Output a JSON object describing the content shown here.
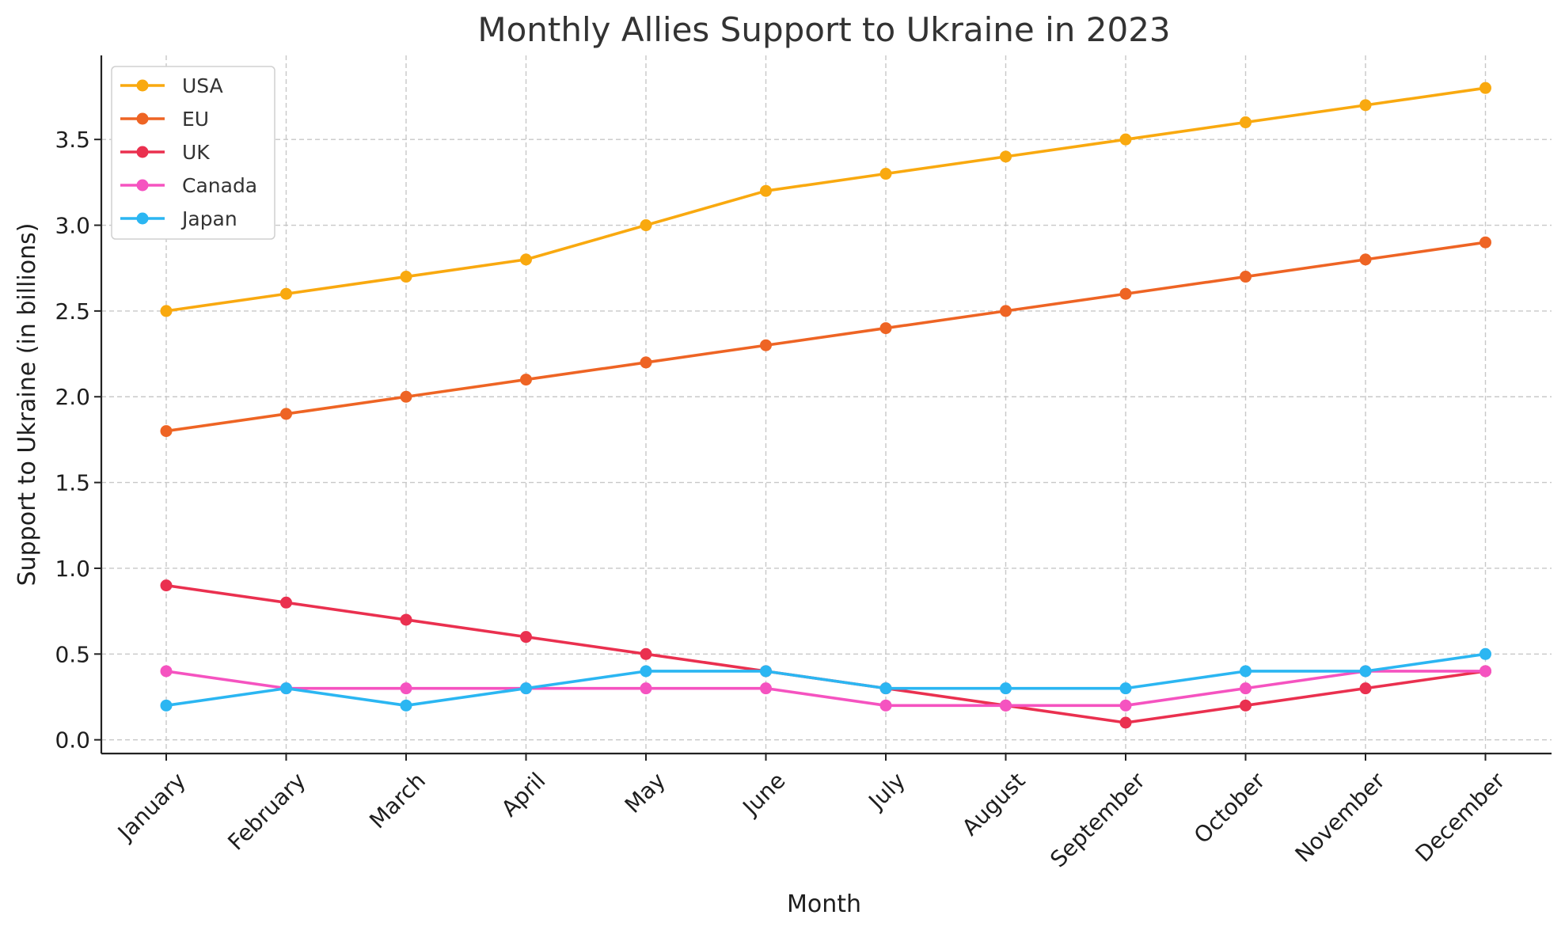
{
  "chart_data": {
    "type": "line",
    "title": "Monthly Allies Support to Ukraine in 2023",
    "xlabel": "Month",
    "ylabel": "Support to Ukraine (in billions)",
    "categories": [
      "January",
      "February",
      "March",
      "April",
      "May",
      "June",
      "July",
      "August",
      "September",
      "October",
      "November",
      "December"
    ],
    "ylim": [
      -0.08,
      3.99
    ],
    "yticks": [
      0.0,
      0.5,
      1.0,
      1.5,
      2.0,
      2.5,
      3.0,
      3.5
    ],
    "ytick_labels": [
      "0.0",
      "0.5",
      "1.0",
      "1.5",
      "2.0",
      "2.5",
      "3.0",
      "3.5"
    ],
    "grid": true,
    "legend_position": "top-left",
    "series": [
      {
        "name": "USA",
        "color": "#f9a90f",
        "values": [
          2.5,
          2.6,
          2.7,
          2.8,
          3.0,
          3.2,
          3.3,
          3.4,
          3.5,
          3.6,
          3.7,
          3.8
        ]
      },
      {
        "name": "EU",
        "color": "#ee6424",
        "values": [
          1.8,
          1.9,
          2.0,
          2.1,
          2.2,
          2.3,
          2.4,
          2.5,
          2.6,
          2.7,
          2.8,
          2.9
        ]
      },
      {
        "name": "UK",
        "color": "#ea304f",
        "values": [
          0.9,
          0.8,
          0.7,
          0.6,
          0.5,
          0.4,
          0.3,
          0.2,
          0.1,
          0.2,
          0.3,
          0.4
        ]
      },
      {
        "name": "Canada",
        "color": "#f553c0",
        "values": [
          0.4,
          0.3,
          0.3,
          0.3,
          0.3,
          0.3,
          0.2,
          0.2,
          0.2,
          0.3,
          0.4,
          0.4
        ]
      },
      {
        "name": "Japan",
        "color": "#2bb6f2",
        "values": [
          0.2,
          0.3,
          0.2,
          0.3,
          0.4,
          0.4,
          0.3,
          0.3,
          0.3,
          0.4,
          0.4,
          0.5
        ]
      }
    ]
  }
}
